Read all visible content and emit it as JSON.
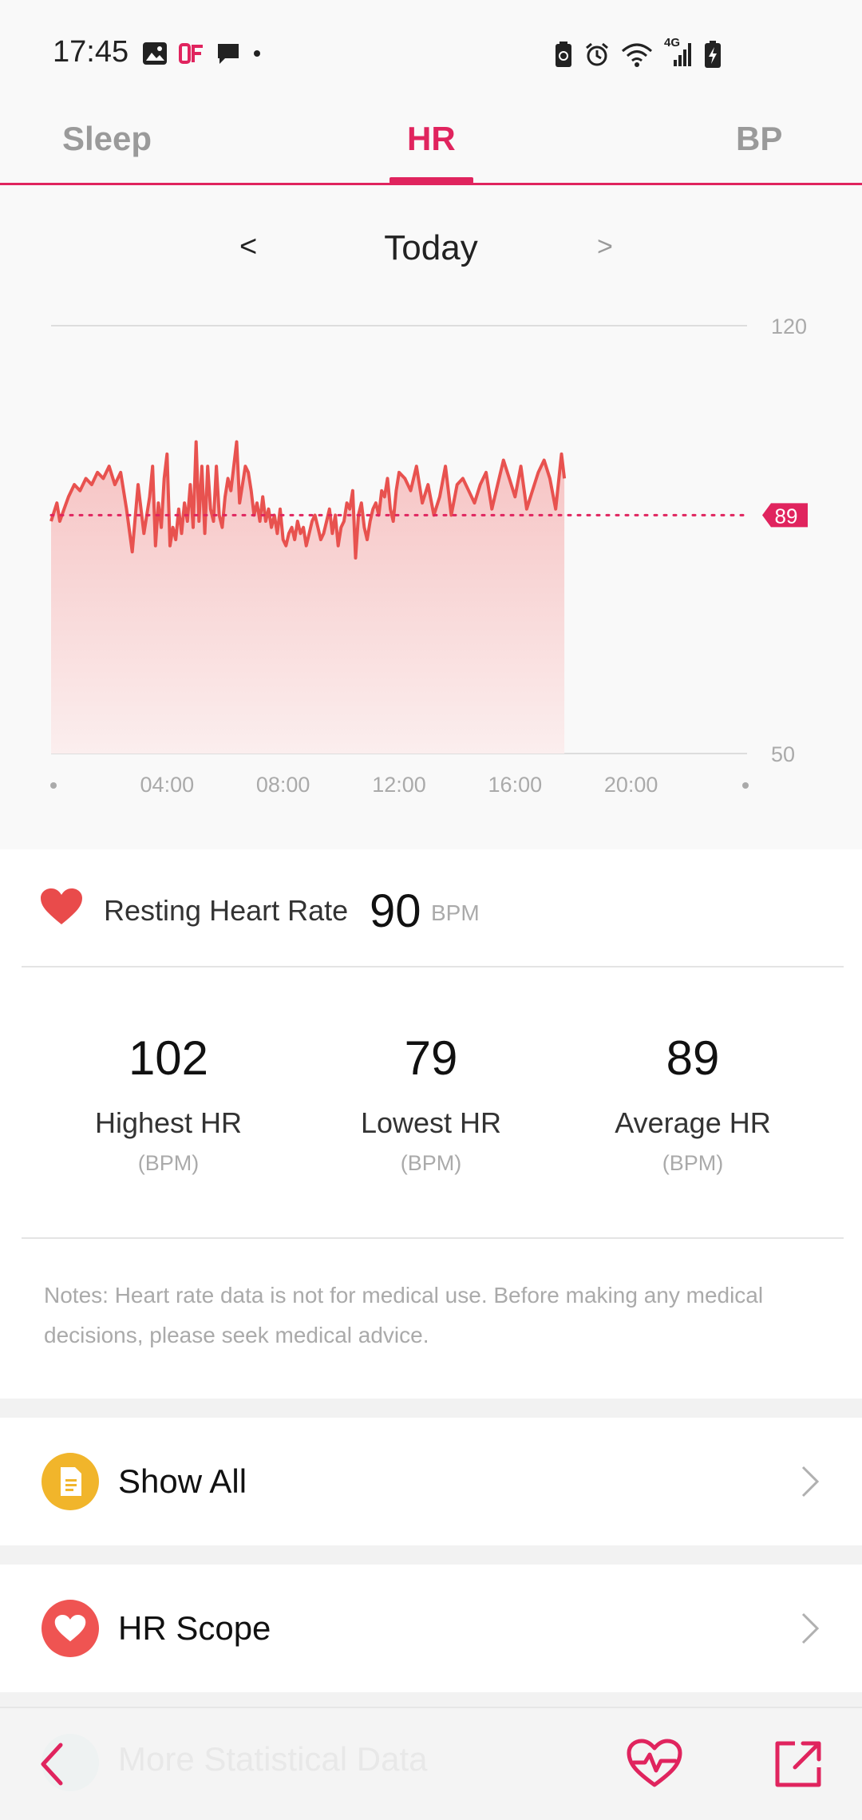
{
  "status_bar": {
    "time": "17:45",
    "network_label": "4G"
  },
  "tabs": [
    {
      "label": "Sleep",
      "active": false
    },
    {
      "label": "HR",
      "active": true
    },
    {
      "label": "BP",
      "active": false
    }
  ],
  "date_nav": {
    "prev": "<",
    "label": "Today",
    "next": ">"
  },
  "chart_data": {
    "type": "area",
    "title": "",
    "x_unit": "hours",
    "xlim": [
      0,
      24
    ],
    "ylim": [
      50,
      120
    ],
    "y_tick_labels": [
      "120",
      "50"
    ],
    "x_tick_labels": [
      "04:00",
      "08:00",
      "12:00",
      "16:00",
      "20:00"
    ],
    "average_line": {
      "value": 89,
      "label": "89"
    },
    "colors": {
      "line": "#e8524f",
      "fill_top": "#f6c2c2",
      "fill_bottom": "#fbeeee",
      "marker": "#e0245e"
    },
    "x": [
      0.0,
      0.2,
      0.3,
      0.45,
      0.6,
      0.8,
      1.0,
      1.2,
      1.4,
      1.6,
      1.8,
      2.0,
      2.2,
      2.4,
      2.6,
      2.8,
      3.0,
      3.2,
      3.4,
      3.5,
      3.6,
      3.7,
      3.8,
      3.9,
      4.0,
      4.1,
      4.2,
      4.3,
      4.4,
      4.5,
      4.6,
      4.7,
      4.8,
      4.9,
      5.0,
      5.1,
      5.2,
      5.3,
      5.4,
      5.5,
      5.6,
      5.7,
      5.8,
      5.9,
      6.0,
      6.1,
      6.2,
      6.3,
      6.4,
      6.5,
      6.6,
      6.7,
      6.8,
      6.9,
      7.0,
      7.1,
      7.2,
      7.3,
      7.4,
      7.5,
      7.6,
      7.7,
      7.8,
      7.9,
      8.0,
      8.1,
      8.2,
      8.3,
      8.4,
      8.5,
      8.6,
      8.7,
      8.8,
      8.9,
      9.0,
      9.1,
      9.2,
      9.3,
      9.4,
      9.5,
      9.6,
      9.7,
      9.8,
      9.9,
      10.0,
      10.1,
      10.2,
      10.3,
      10.4,
      10.5,
      10.6,
      10.7,
      10.8,
      10.9,
      11.0,
      11.1,
      11.2,
      11.3,
      11.4,
      11.5,
      11.6,
      11.7,
      11.8,
      11.9,
      12.0,
      12.2,
      12.4,
      12.6,
      12.8,
      13.0,
      13.2,
      13.4,
      13.6,
      13.8,
      14.0,
      14.2,
      14.4,
      14.6,
      14.8,
      15.0,
      15.2,
      15.4,
      15.6,
      15.8,
      16.0,
      16.2,
      16.4,
      16.6,
      16.8,
      17.0,
      17.2,
      17.4,
      17.6,
      17.7
    ],
    "values": [
      88,
      91,
      88,
      90,
      92,
      94,
      93,
      95,
      94,
      96,
      95,
      97,
      94,
      96,
      90,
      83,
      94,
      86,
      92,
      97,
      84,
      91,
      87,
      95,
      99,
      84,
      87,
      85,
      90,
      86,
      91,
      88,
      94,
      87,
      101,
      88,
      97,
      86,
      97,
      90,
      88,
      97,
      89,
      87,
      92,
      95,
      93,
      97,
      101,
      91,
      94,
      97,
      96,
      93,
      89,
      91,
      88,
      92,
      88,
      90,
      87,
      89,
      86,
      90,
      85,
      84,
      86,
      87,
      85,
      88,
      86,
      87,
      84,
      86,
      88,
      89,
      87,
      85,
      86,
      88,
      90,
      86,
      89,
      84,
      87,
      88,
      91,
      90,
      93,
      82,
      89,
      91,
      87,
      85,
      88,
      90,
      91,
      89,
      93,
      92,
      95,
      90,
      88,
      93,
      96,
      95,
      93,
      97,
      91,
      94,
      89,
      92,
      97,
      89,
      94,
      95,
      93,
      91,
      94,
      96,
      90,
      94,
      98,
      95,
      92,
      97,
      90,
      93,
      96,
      98,
      95,
      90,
      99,
      95
    ]
  },
  "resting": {
    "label": "Resting Heart Rate",
    "value": "90",
    "unit": "BPM"
  },
  "stats": [
    {
      "value": "102",
      "label": "Highest HR",
      "unit": "(BPM)"
    },
    {
      "value": "79",
      "label": "Lowest HR",
      "unit": "(BPM)"
    },
    {
      "value": "89",
      "label": "Average HR",
      "unit": "(BPM)"
    }
  ],
  "notes": "Notes: Heart rate data is not for medical use. Before making any medical decisions, please seek medical advice.",
  "menu": {
    "show_all": "Show All",
    "hr_scope": "HR Scope",
    "more_stats": "More Statistical Data"
  },
  "colors": {
    "accent": "#e0245e",
    "heart_red": "#e94b4b",
    "show_all_icon": "#f1b52b",
    "hr_scope_icon": "#ef5452"
  }
}
